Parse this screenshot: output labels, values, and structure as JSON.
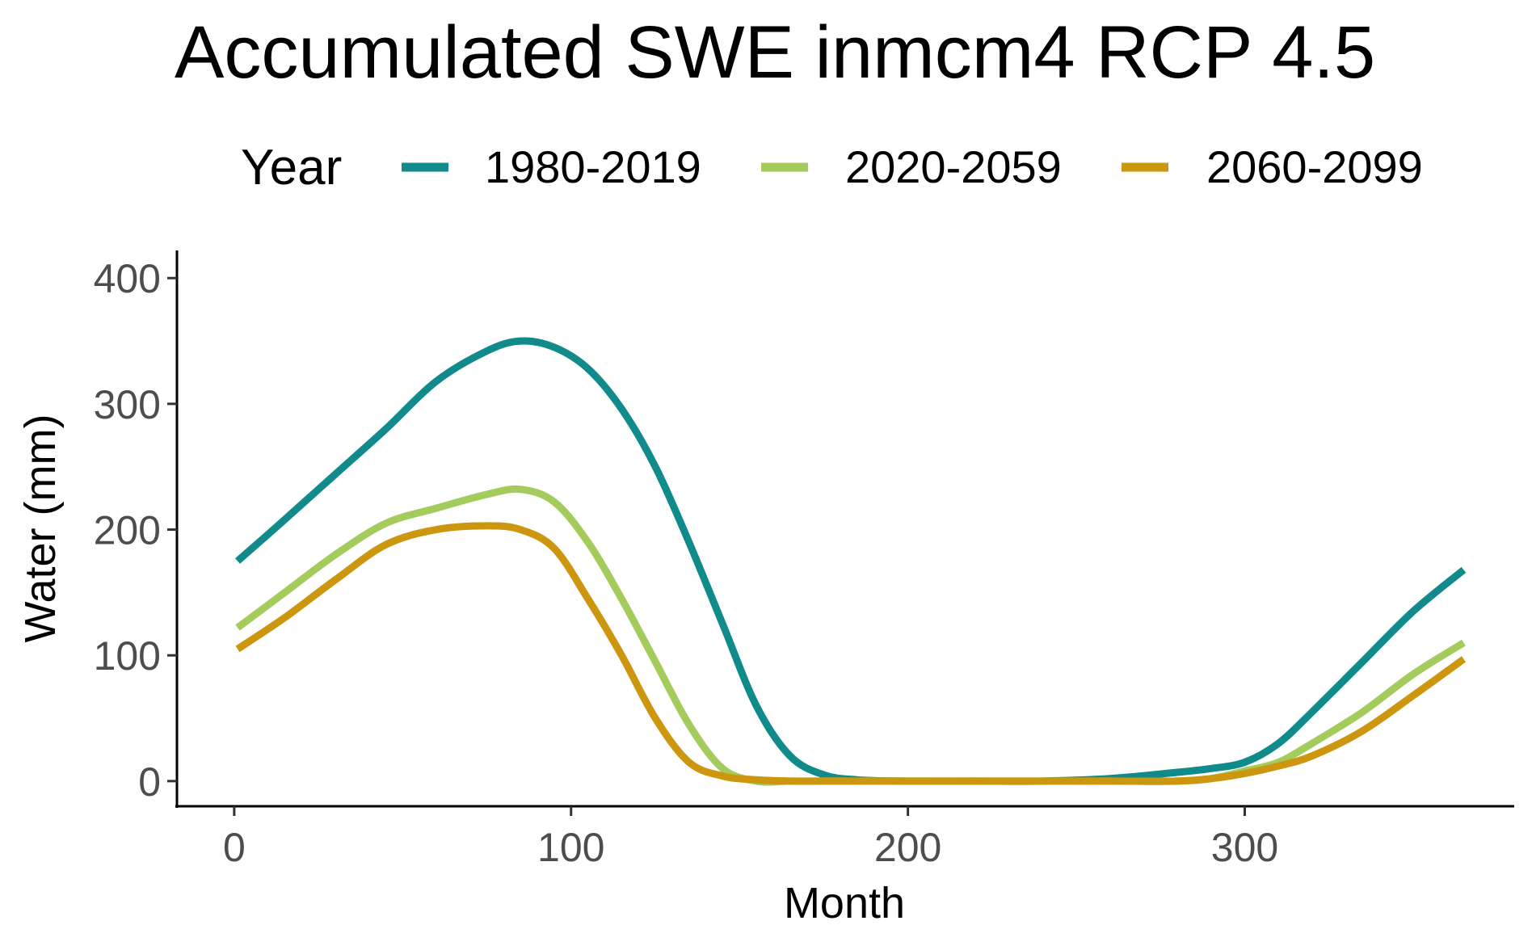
{
  "chart_data": {
    "type": "line",
    "title": "Accumulated SWE inmcm4 RCP 4.5",
    "xlabel": "Month",
    "ylabel": "Water (mm)",
    "xlim": [
      -17,
      380
    ],
    "ylim": [
      -20,
      422
    ],
    "x_ticks": [
      0,
      100,
      200,
      300
    ],
    "y_ticks": [
      0,
      100,
      200,
      300,
      400
    ],
    "grid": false,
    "legend": {
      "title": "Year",
      "position": "top"
    },
    "x": [
      1,
      15,
      30,
      45,
      60,
      75,
      85,
      95,
      105,
      115,
      125,
      135,
      145,
      155,
      165,
      175,
      185,
      200,
      220,
      240,
      260,
      280,
      290,
      300,
      310,
      320,
      335,
      350,
      365
    ],
    "series": [
      {
        "name": "1980-2019",
        "color": "#108a8a",
        "values": [
          175,
          208,
          244,
          280,
          318,
          342,
          350,
          345,
          328,
          296,
          250,
          190,
          125,
          60,
          20,
          5,
          1,
          0,
          0,
          0,
          2,
          7,
          10,
          15,
          30,
          55,
          95,
          135,
          168
        ]
      },
      {
        "name": "2020-2059",
        "color": "#a3cc5c",
        "values": [
          122,
          150,
          180,
          205,
          217,
          228,
          232,
          222,
          190,
          145,
          95,
          45,
          10,
          0,
          0,
          0,
          0,
          0,
          0,
          0,
          0,
          0,
          2,
          8,
          15,
          30,
          55,
          85,
          110
        ]
      },
      {
        "name": "2060-2099",
        "color": "#cc960f",
        "values": [
          105,
          130,
          160,
          188,
          200,
          203,
          200,
          185,
          145,
          100,
          50,
          15,
          4,
          1,
          0,
          0,
          0,
          0,
          0,
          0,
          0,
          0,
          2,
          6,
          12,
          20,
          40,
          68,
          97
        ]
      }
    ]
  }
}
